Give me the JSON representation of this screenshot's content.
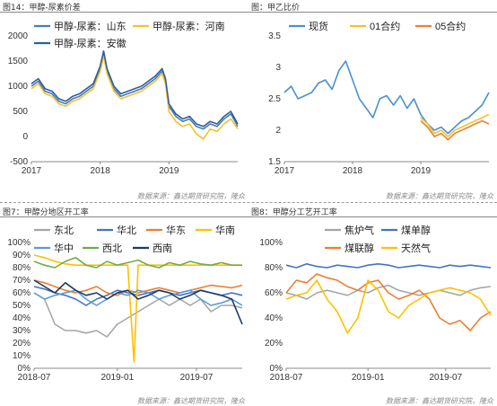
{
  "panels": [
    {
      "title": "图14：甲醇-尿素价差",
      "source": "数据来源：鑫达期货研究院，隆众"
    },
    {
      "title": "图：甲乙比价",
      "source": "数据来源：鑫达期货研究院，隆众"
    },
    {
      "title": "图7：甲醇分地区开工率",
      "source": "数据来源：鑫达期货研究院，隆众"
    },
    {
      "title": "图8：甲醇分工艺开工率",
      "source": "数据来源：鑫达期货研究院，隆众"
    }
  ],
  "chart_data": [
    {
      "type": "line",
      "title": "",
      "ylim": [
        -500,
        2000
      ],
      "yticks": [
        "-500",
        "0",
        "500",
        "1000",
        "1500",
        "2000"
      ],
      "xticks": [
        "2017",
        "2018",
        "2019"
      ],
      "legend_placement": "top",
      "series": [
        {
          "name": "甲醇-尿素：山东",
          "color": "#4a7bb7",
          "x": [
            2017.0,
            2017.1,
            2017.2,
            2017.3,
            2017.4,
            2017.5,
            2017.6,
            2017.7,
            2017.8,
            2017.9,
            2018.0,
            2018.05,
            2018.1,
            2018.2,
            2018.3,
            2018.4,
            2018.5,
            2018.6,
            2018.7,
            2018.8,
            2018.9,
            2018.95,
            2019.0,
            2019.1,
            2019.2,
            2019.3,
            2019.4,
            2019.5,
            2019.6,
            2019.7,
            2019.8,
            2019.9,
            2020.0
          ],
          "y": [
            1000,
            1100,
            900,
            850,
            700,
            650,
            750,
            800,
            900,
            1000,
            1350,
            1650,
            1300,
            950,
            800,
            850,
            900,
            950,
            1050,
            1150,
            1300,
            1100,
            600,
            400,
            300,
            350,
            200,
            150,
            250,
            200,
            350,
            450,
            200
          ]
        },
        {
          "name": "甲醇-尿素：河南",
          "color": "#f2c230",
          "x": [
            2017.0,
            2017.1,
            2017.2,
            2017.3,
            2017.4,
            2017.5,
            2017.6,
            2017.7,
            2017.8,
            2017.9,
            2018.0,
            2018.05,
            2018.1,
            2018.2,
            2018.3,
            2018.4,
            2018.5,
            2018.6,
            2018.7,
            2018.8,
            2018.9,
            2018.95,
            2019.0,
            2019.1,
            2019.2,
            2019.3,
            2019.4,
            2019.5,
            2019.6,
            2019.7,
            2019.8,
            2019.9,
            2020.0
          ],
          "y": [
            950,
            1050,
            850,
            800,
            650,
            600,
            700,
            750,
            850,
            950,
            1300,
            1600,
            1250,
            900,
            750,
            800,
            850,
            900,
            1000,
            1100,
            1250,
            1050,
            500,
            300,
            200,
            250,
            50,
            -50,
            150,
            100,
            250,
            350,
            150
          ]
        },
        {
          "name": "甲醇-尿素：安徽",
          "color": "#2f5f9e",
          "x": [
            2017.0,
            2017.1,
            2017.2,
            2017.3,
            2017.4,
            2017.5,
            2017.6,
            2017.7,
            2017.8,
            2017.9,
            2018.0,
            2018.05,
            2018.1,
            2018.2,
            2018.3,
            2018.4,
            2018.5,
            2018.6,
            2018.7,
            2018.8,
            2018.9,
            2018.95,
            2019.0,
            2019.1,
            2019.2,
            2019.3,
            2019.4,
            2019.5,
            2019.6,
            2019.7,
            2019.8,
            2019.9,
            2020.0
          ],
          "y": [
            1050,
            1150,
            950,
            900,
            750,
            700,
            800,
            850,
            950,
            1050,
            1400,
            1700,
            1350,
            1000,
            850,
            900,
            950,
            1000,
            1100,
            1200,
            1350,
            1150,
            650,
            450,
            350,
            400,
            250,
            200,
            300,
            250,
            400,
            500,
            250
          ]
        }
      ]
    },
    {
      "type": "line",
      "title": "",
      "ylim": [
        1.5,
        3.5
      ],
      "yticks": [
        "1.5",
        "2",
        "2.5",
        "3",
        "3.5"
      ],
      "xticks": [
        "2017",
        "2018",
        "2019"
      ],
      "legend_placement": "top",
      "series": [
        {
          "name": "现货",
          "color": "#4a90d0",
          "x": [
            2017.0,
            2017.1,
            2017.2,
            2017.3,
            2017.4,
            2017.5,
            2017.6,
            2017.7,
            2017.8,
            2017.9,
            2018.0,
            2018.1,
            2018.2,
            2018.3,
            2018.4,
            2018.5,
            2018.6,
            2018.7,
            2018.8,
            2018.9,
            2019.0,
            2019.1,
            2019.2,
            2019.3,
            2019.4,
            2019.5,
            2019.6,
            2019.7,
            2019.8,
            2019.9,
            2020.0
          ],
          "y": [
            2.6,
            2.7,
            2.5,
            2.55,
            2.6,
            2.75,
            2.8,
            2.65,
            2.95,
            3.1,
            2.8,
            2.5,
            2.35,
            2.2,
            2.5,
            2.55,
            2.4,
            2.55,
            2.35,
            2.5,
            2.25,
            2.1,
            2.0,
            2.05,
            1.95,
            2.05,
            2.15,
            2.2,
            2.3,
            2.4,
            2.6
          ]
        },
        {
          "name": "01合约",
          "color": "#f2c230",
          "x": [
            2019.0,
            2019.1,
            2019.2,
            2019.3,
            2019.4,
            2019.5,
            2019.6,
            2019.7,
            2019.8,
            2019.9,
            2020.0
          ],
          "y": [
            2.2,
            2.1,
            1.95,
            2.0,
            1.9,
            2.0,
            2.05,
            2.1,
            2.15,
            2.2,
            2.25
          ]
        },
        {
          "name": "05合约",
          "color": "#e8823a",
          "x": [
            2019.0,
            2019.1,
            2019.2,
            2019.3,
            2019.4,
            2019.5,
            2019.6,
            2019.7,
            2019.8,
            2019.9,
            2020.0
          ],
          "y": [
            2.15,
            2.05,
            1.9,
            1.95,
            1.85,
            1.95,
            2.0,
            2.05,
            2.1,
            2.15,
            2.1
          ]
        }
      ]
    },
    {
      "type": "line",
      "title": "",
      "ylim": [
        0,
        100
      ],
      "yticks": [
        "0%",
        "10%",
        "20%",
        "30%",
        "40%",
        "50%",
        "60%",
        "70%",
        "80%",
        "90%",
        "100%"
      ],
      "xticks": [
        "2018-07",
        "2019-01",
        "2019-07"
      ],
      "legend_placement": "top",
      "series": [
        {
          "name": "东北",
          "color": "#a6a6a6",
          "x": [
            0,
            0.05,
            0.1,
            0.15,
            0.2,
            0.25,
            0.3,
            0.35,
            0.4,
            0.45,
            0.5,
            0.55,
            0.6,
            0.65,
            0.7,
            0.75,
            0.8,
            0.85,
            0.9,
            0.95,
            1.0
          ],
          "y": [
            60,
            55,
            35,
            30,
            30,
            28,
            30,
            25,
            35,
            40,
            45,
            50,
            55,
            50,
            55,
            50,
            55,
            45,
            50,
            50,
            48
          ]
        },
        {
          "name": "华北",
          "color": "#4472c4",
          "x": [
            0,
            0.05,
            0.1,
            0.15,
            0.2,
            0.25,
            0.3,
            0.35,
            0.4,
            0.45,
            0.5,
            0.55,
            0.6,
            0.65,
            0.7,
            0.75,
            0.8,
            0.85,
            0.9,
            0.95,
            1.0
          ],
          "y": [
            65,
            63,
            60,
            58,
            55,
            50,
            55,
            58,
            62,
            60,
            58,
            60,
            62,
            60,
            58,
            60,
            62,
            60,
            58,
            60,
            58
          ]
        },
        {
          "name": "华东",
          "color": "#ed7d31",
          "x": [
            0,
            0.05,
            0.1,
            0.15,
            0.2,
            0.25,
            0.3,
            0.35,
            0.4,
            0.45,
            0.5,
            0.55,
            0.6,
            0.65,
            0.7,
            0.75,
            0.8,
            0.85,
            0.9,
            0.95,
            1.0
          ],
          "y": [
            70,
            68,
            65,
            62,
            60,
            62,
            65,
            60,
            58,
            62,
            60,
            62,
            64,
            62,
            60,
            62,
            64,
            66,
            65,
            64,
            66
          ]
        },
        {
          "name": "华南",
          "color": "#ffc000",
          "x": [
            0,
            0.05,
            0.1,
            0.15,
            0.2,
            0.25,
            0.3,
            0.35,
            0.4,
            0.45,
            0.48,
            0.5,
            0.55,
            0.6,
            0.65,
            0.7,
            0.75,
            0.8,
            0.85,
            0.9,
            0.95,
            1.0
          ],
          "y": [
            90,
            88,
            85,
            83,
            82,
            82,
            82,
            82,
            82,
            82,
            5,
            82,
            82,
            82,
            82,
            82,
            82,
            82,
            82,
            82,
            82,
            82
          ]
        },
        {
          "name": "华中",
          "color": "#5b9bd5",
          "x": [
            0,
            0.05,
            0.1,
            0.15,
            0.2,
            0.25,
            0.3,
            0.35,
            0.4,
            0.45,
            0.5,
            0.55,
            0.6,
            0.65,
            0.7,
            0.75,
            0.8,
            0.85,
            0.9,
            0.95,
            1.0
          ],
          "y": [
            60,
            55,
            58,
            60,
            62,
            55,
            50,
            55,
            60,
            58,
            62,
            60,
            55,
            58,
            60,
            62,
            55,
            50,
            52,
            55,
            50
          ]
        },
        {
          "name": "西北",
          "color": "#70ad47",
          "x": [
            0,
            0.05,
            0.1,
            0.15,
            0.2,
            0.25,
            0.3,
            0.35,
            0.4,
            0.45,
            0.5,
            0.55,
            0.6,
            0.65,
            0.7,
            0.75,
            0.8,
            0.85,
            0.9,
            0.95,
            1.0
          ],
          "y": [
            85,
            82,
            80,
            85,
            88,
            82,
            80,
            85,
            82,
            84,
            86,
            82,
            80,
            84,
            82,
            85,
            83,
            82,
            84,
            82,
            82
          ]
        },
        {
          "name": "西南",
          "color": "#1f3864",
          "x": [
            0,
            0.05,
            0.1,
            0.15,
            0.2,
            0.25,
            0.3,
            0.35,
            0.4,
            0.45,
            0.5,
            0.55,
            0.6,
            0.65,
            0.7,
            0.75,
            0.8,
            0.85,
            0.9,
            0.95,
            1.0
          ],
          "y": [
            70,
            65,
            60,
            68,
            62,
            58,
            60,
            55,
            60,
            62,
            55,
            58,
            62,
            60,
            55,
            58,
            62,
            60,
            58,
            55,
            35
          ]
        }
      ]
    },
    {
      "type": "line",
      "title": "",
      "ylim": [
        0,
        100
      ],
      "yticks": [
        "0%",
        "20%",
        "40%",
        "60%",
        "80%",
        "100%"
      ],
      "xticks": [
        "2018-07",
        "2019-01",
        "2019-07"
      ],
      "legend_placement": "top",
      "series": [
        {
          "name": "焦炉气",
          "color": "#a6a6a6",
          "x": [
            0,
            0.05,
            0.1,
            0.15,
            0.2,
            0.25,
            0.3,
            0.35,
            0.4,
            0.45,
            0.5,
            0.55,
            0.6,
            0.65,
            0.7,
            0.75,
            0.8,
            0.85,
            0.9,
            0.95,
            1.0
          ],
          "y": [
            60,
            58,
            55,
            60,
            62,
            60,
            58,
            62,
            60,
            64,
            66,
            62,
            60,
            58,
            60,
            62,
            60,
            58,
            62,
            64,
            65
          ]
        },
        {
          "name": "煤单醇",
          "color": "#4472c4",
          "x": [
            0,
            0.05,
            0.1,
            0.15,
            0.2,
            0.25,
            0.3,
            0.35,
            0.4,
            0.45,
            0.5,
            0.55,
            0.6,
            0.65,
            0.7,
            0.75,
            0.8,
            0.85,
            0.9,
            0.95,
            1.0
          ],
          "y": [
            82,
            80,
            83,
            81,
            80,
            82,
            81,
            80,
            82,
            83,
            82,
            80,
            81,
            82,
            81,
            80,
            82,
            81,
            82,
            81,
            80
          ]
        },
        {
          "name": "煤联醇",
          "color": "#ed7d31",
          "x": [
            0,
            0.05,
            0.1,
            0.15,
            0.2,
            0.25,
            0.3,
            0.35,
            0.4,
            0.45,
            0.5,
            0.55,
            0.6,
            0.65,
            0.7,
            0.75,
            0.8,
            0.85,
            0.9,
            0.95,
            1.0
          ],
          "y": [
            60,
            70,
            68,
            75,
            72,
            70,
            65,
            62,
            68,
            70,
            60,
            55,
            58,
            62,
            55,
            40,
            35,
            38,
            30,
            40,
            45
          ]
        },
        {
          "name": "天然气",
          "color": "#ffc000",
          "x": [
            0,
            0.05,
            0.1,
            0.15,
            0.2,
            0.25,
            0.3,
            0.35,
            0.4,
            0.45,
            0.5,
            0.55,
            0.6,
            0.65,
            0.7,
            0.75,
            0.8,
            0.85,
            0.9,
            0.95,
            1.0
          ],
          "y": [
            55,
            58,
            60,
            70,
            55,
            45,
            28,
            40,
            70,
            62,
            45,
            40,
            50,
            55,
            60,
            62,
            64,
            62,
            60,
            55,
            42
          ]
        }
      ]
    }
  ]
}
